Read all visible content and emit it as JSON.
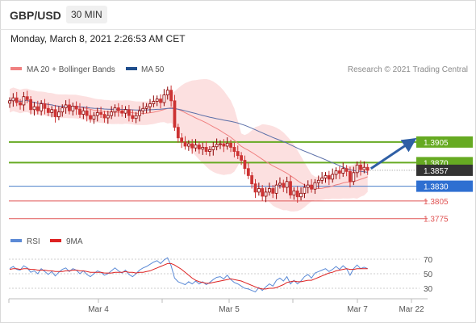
{
  "header": {
    "symbol": "GBP/USD",
    "interval": "30 MIN",
    "datetime": "Monday, March 8, 2021 2:26:53 AM CET"
  },
  "legend": {
    "ma20_label": "MA 20 + Bollinger Bands",
    "ma50_label": "MA 50",
    "copyright": "Research © 2021 Trading Central",
    "rsi_label": "RSI",
    "rsi_ma_label": "9MA"
  },
  "colors": {
    "ma20": "#f08080",
    "ma50": "#1f4e8c",
    "resistance": "#66aa22",
    "support": "#4a7ec9",
    "support_red": "#e05555",
    "bull": "#8c0000",
    "bear": "#cc3333",
    "rsi": "#5b8ad6",
    "rsi_ma": "#dd2222",
    "arrow": "#2f5fa5"
  },
  "chart_data": {
    "type": "candlestick",
    "x_tick_labels": [
      "Mar 4",
      "Mar 5",
      "Mar 7",
      "Mar 22"
    ],
    "price_range": [
      1.3765,
      1.402
    ],
    "current_price": 1.3857,
    "levels": [
      {
        "value": 1.3905,
        "label": "1.3905",
        "kind": "resistance"
      },
      {
        "value": 1.387,
        "label": "1.3870",
        "kind": "resistance"
      },
      {
        "value": 1.3857,
        "label": "1.3857",
        "kind": "current"
      },
      {
        "value": 1.383,
        "label": "1.3830",
        "kind": "pivot"
      },
      {
        "value": 1.3805,
        "label": "1.3805",
        "kind": "support"
      },
      {
        "value": 1.3775,
        "label": "1.3775",
        "kind": "support"
      }
    ],
    "forecast_arrow": {
      "from": 1.386,
      "to": 1.3905
    },
    "closes": [
      1.3975,
      1.398,
      1.3972,
      1.3968,
      1.3982,
      1.3977,
      1.396,
      1.3965,
      1.3958,
      1.397,
      1.3962,
      1.3955,
      1.396,
      1.3948,
      1.3956,
      1.3963,
      1.3968,
      1.3958,
      1.3966,
      1.3961,
      1.3952,
      1.3958,
      1.395,
      1.3944,
      1.395,
      1.3955,
      1.3952,
      1.3946,
      1.395,
      1.3956,
      1.3963,
      1.3958,
      1.3954,
      1.396,
      1.395,
      1.3945,
      1.395,
      1.3958,
      1.3962,
      1.3965,
      1.397,
      1.3974,
      1.3978,
      1.3972,
      1.3985,
      1.3993,
      1.3975,
      1.393,
      1.3912,
      1.3905,
      1.3898,
      1.3902,
      1.3895,
      1.39,
      1.3893,
      1.3896,
      1.3889,
      1.3892,
      1.3897,
      1.3901,
      1.3902,
      1.3898,
      1.3903,
      1.3896,
      1.3889,
      1.3882,
      1.3874,
      1.386,
      1.3848,
      1.3834,
      1.382,
      1.3826,
      1.3813,
      1.382,
      1.3826,
      1.3818,
      1.3832,
      1.3835,
      1.3828,
      1.3838,
      1.3815,
      1.3822,
      1.3812,
      1.3818,
      1.3828,
      1.3832,
      1.3825,
      1.3836,
      1.384,
      1.3844,
      1.3848,
      1.3842,
      1.385,
      1.3856,
      1.3852,
      1.386,
      1.3855,
      1.3838,
      1.3853,
      1.3866,
      1.3858,
      1.3862,
      1.3857
    ],
    "rsi": {
      "levels": [
        70,
        50,
        30
      ],
      "range": [
        20,
        80
      ],
      "values": [
        57,
        60,
        56,
        55,
        61,
        58,
        52,
        54,
        50,
        57,
        53,
        49,
        53,
        47,
        52,
        56,
        58,
        53,
        57,
        55,
        50,
        54,
        49,
        46,
        50,
        54,
        52,
        48,
        50,
        54,
        58,
        54,
        51,
        55,
        49,
        46,
        50,
        55,
        58,
        60,
        63,
        66,
        68,
        64,
        69,
        72,
        61,
        44,
        39,
        37,
        35,
        39,
        36,
        40,
        36,
        39,
        35,
        38,
        42,
        45,
        46,
        43,
        48,
        42,
        38,
        36,
        33,
        30,
        29,
        27,
        25,
        31,
        27,
        32,
        36,
        33,
        41,
        44,
        40,
        46,
        36,
        41,
        36,
        40,
        46,
        49,
        44,
        51,
        53,
        55,
        57,
        53,
        56,
        60,
        56,
        61,
        57,
        48,
        57,
        62,
        57,
        59,
        57
      ],
      "ma_values": [
        56,
        57,
        57,
        56,
        57,
        57,
        56,
        56,
        55,
        55,
        55,
        54,
        54,
        53,
        53,
        53,
        54,
        54,
        55,
        55,
        54,
        54,
        53,
        52,
        52,
        52,
        52,
        51,
        51,
        51,
        52,
        52,
        52,
        53,
        52,
        52,
        51,
        52,
        52,
        53,
        54,
        56,
        58,
        60,
        62,
        64,
        64,
        62,
        59,
        56,
        52,
        48,
        44,
        41,
        39,
        38,
        37,
        37,
        38,
        39,
        40,
        41,
        42,
        43,
        42,
        41,
        40,
        38,
        36,
        34,
        32,
        30,
        29,
        29,
        30,
        30,
        31,
        33,
        35,
        38,
        39,
        40,
        39,
        39,
        40,
        41,
        41,
        43,
        45,
        47,
        49,
        51,
        52,
        54,
        55,
        56,
        57,
        56,
        56,
        57,
        57,
        57,
        57
      ]
    }
  }
}
